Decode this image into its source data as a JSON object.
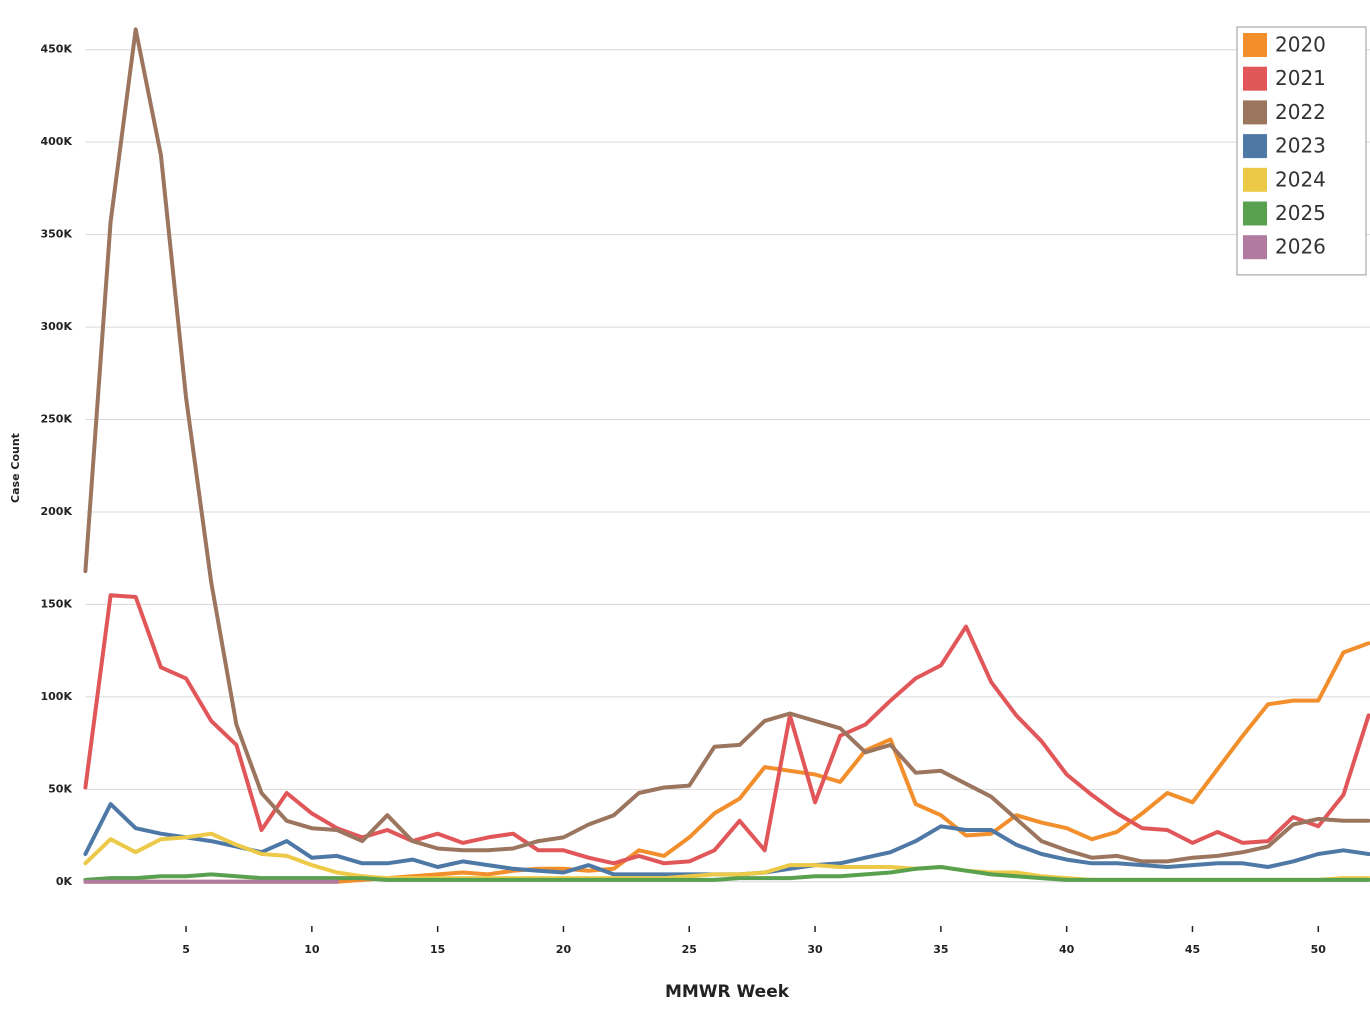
{
  "chart_data": {
    "type": "line",
    "x_label": "MMWR Week",
    "y_label": "Case Count",
    "x": [
      1,
      2,
      3,
      4,
      5,
      6,
      7,
      8,
      9,
      10,
      11,
      12,
      13,
      14,
      15,
      16,
      17,
      18,
      19,
      20,
      21,
      22,
      23,
      24,
      25,
      26,
      27,
      28,
      29,
      30,
      31,
      32,
      33,
      34,
      35,
      36,
      37,
      38,
      39,
      40,
      41,
      42,
      43,
      44,
      45,
      46,
      47,
      48,
      49,
      50,
      51,
      52
    ],
    "xlim": [
      1,
      52
    ],
    "xticks": [
      5,
      10,
      15,
      20,
      25,
      30,
      35,
      40,
      45,
      50
    ],
    "ylim": [
      -25000,
      485000
    ],
    "yticks": [
      {
        "value": 0,
        "label": "0K"
      },
      {
        "value": 50000,
        "label": "50K"
      },
      {
        "value": 100000,
        "label": "100K"
      },
      {
        "value": 150000,
        "label": "150K"
      },
      {
        "value": 200000,
        "label": "200K"
      },
      {
        "value": 250000,
        "label": "250K"
      },
      {
        "value": 300000,
        "label": "300K"
      },
      {
        "value": 350000,
        "label": "350K"
      },
      {
        "value": 400000,
        "label": "400K"
      },
      {
        "value": 450000,
        "label": "450K"
      }
    ],
    "grid": true,
    "legend": "top-right",
    "series": [
      {
        "name": "2020",
        "color": "#f28e2b",
        "values": [
          0,
          0,
          0,
          0,
          0,
          0,
          0,
          0,
          0,
          0,
          0,
          1000,
          2000,
          3000,
          4000,
          5000,
          4000,
          6000,
          7000,
          7000,
          6000,
          7000,
          17000,
          14000,
          24000,
          37000,
          45000,
          62000,
          60000,
          58000,
          54000,
          71000,
          77000,
          42000,
          36000,
          25000,
          26000,
          36000,
          32000,
          29000,
          23000,
          27000,
          37000,
          48000,
          43000,
          61000,
          79000,
          96000,
          98000,
          98000,
          124000,
          129000
        ]
      },
      {
        "name": "2021",
        "color": "#e15759",
        "values": [
          51000,
          155000,
          154000,
          116000,
          110000,
          87000,
          74000,
          28000,
          48000,
          37000,
          29000,
          24000,
          28000,
          22000,
          26000,
          21000,
          24000,
          26000,
          17000,
          17000,
          13000,
          10000,
          14000,
          10000,
          11000,
          17000,
          33000,
          17000,
          90000,
          43000,
          79000,
          85000,
          98000,
          110000,
          117000,
          138000,
          108000,
          90000,
          76000,
          58000,
          47000,
          37000,
          29000,
          28000,
          21000,
          27000,
          21000,
          22000,
          35000,
          30000,
          47000,
          90000
        ]
      },
      {
        "name": "2022",
        "color": "#9c755f",
        "values": [
          168000,
          357000,
          461000,
          393000,
          262000,
          162000,
          85000,
          48000,
          33000,
          29000,
          28000,
          22000,
          36000,
          22000,
          18000,
          17000,
          17000,
          18000,
          22000,
          24000,
          31000,
          36000,
          48000,
          51000,
          52000,
          73000,
          74000,
          87000,
          91000,
          87000,
          83000,
          70000,
          74000,
          59000,
          60000,
          53000,
          46000,
          34000,
          22000,
          17000,
          13000,
          14000,
          11000,
          11000,
          13000,
          14000,
          16000,
          19000,
          31000,
          34000,
          33000,
          33000
        ]
      },
      {
        "name": "2023",
        "color": "#4e79a7",
        "values": [
          15000,
          42000,
          29000,
          26000,
          24000,
          22000,
          19000,
          16000,
          22000,
          13000,
          14000,
          10000,
          10000,
          12000,
          8000,
          11000,
          9000,
          7000,
          6000,
          5000,
          9000,
          4000,
          4000,
          4000,
          4000,
          4000,
          4000,
          5000,
          7000,
          9000,
          10000,
          13000,
          16000,
          22000,
          30000,
          28000,
          28000,
          20000,
          15000,
          12000,
          10000,
          10000,
          9000,
          8000,
          9000,
          10000,
          10000,
          8000,
          11000,
          15000,
          17000,
          15000
        ]
      },
      {
        "name": "2024",
        "color": "#edc948",
        "values": [
          10000,
          23000,
          16000,
          23000,
          24000,
          26000,
          20000,
          15000,
          14000,
          9000,
          5000,
          3000,
          2000,
          2000,
          2000,
          2000,
          2000,
          2000,
          2000,
          2000,
          2000,
          2000,
          2000,
          2000,
          3000,
          4000,
          4000,
          5000,
          9000,
          9000,
          8000,
          8000,
          8000,
          7000,
          8000,
          6000,
          5000,
          5000,
          3000,
          2000,
          1000,
          1000,
          1000,
          1000,
          1000,
          1000,
          1000,
          1000,
          1000,
          1000,
          2000,
          2000
        ]
      },
      {
        "name": "2025",
        "color": "#59a14f",
        "values": [
          1000,
          2000,
          2000,
          3000,
          3000,
          4000,
          3000,
          2000,
          2000,
          2000,
          2000,
          2000,
          1000,
          1000,
          1000,
          1000,
          1000,
          1000,
          1000,
          1000,
          1000,
          1000,
          1000,
          1000,
          1000,
          1000,
          2000,
          2000,
          2000,
          3000,
          3000,
          4000,
          5000,
          7000,
          8000,
          6000,
          4000,
          3000,
          2000,
          1000,
          1000,
          1000,
          1000,
          1000,
          1000,
          1000,
          1000,
          1000,
          1000,
          1000,
          1000,
          1000
        ]
      },
      {
        "name": "2026",
        "color": "#b07aa1",
        "values": [
          0,
          0,
          0,
          0,
          0,
          0,
          0,
          0,
          0,
          0,
          0,
          null,
          null,
          null,
          null,
          null,
          null,
          null,
          null,
          null,
          null,
          null,
          null,
          null,
          null,
          null,
          null,
          null,
          null,
          null,
          null,
          null,
          null,
          null,
          null,
          null,
          null,
          null,
          null,
          null,
          null,
          null,
          null,
          null,
          null,
          null,
          null,
          null,
          null,
          null,
          null,
          null
        ]
      }
    ]
  }
}
